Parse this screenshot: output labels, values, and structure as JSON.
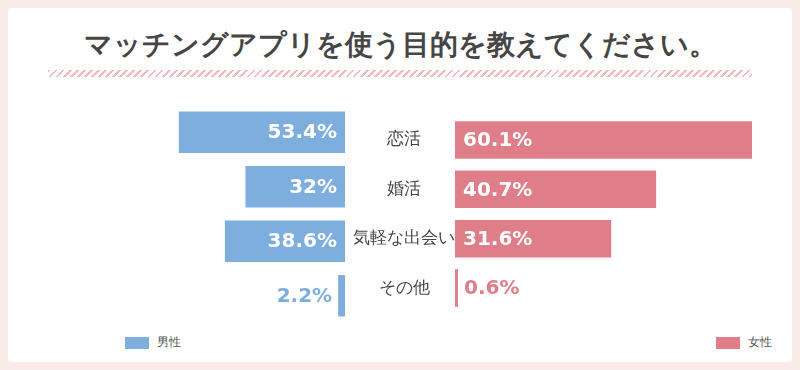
{
  "chart_data": {
    "type": "bar",
    "orientation": "horizontal",
    "title": "マッチングアプリを使う目的を教えてください。",
    "categories": [
      "恋活",
      "婚活",
      "気軽な出会い",
      "その他"
    ],
    "series": [
      {
        "name": "男性",
        "color": "#7eaedd",
        "values": [
          53.4,
          32,
          38.6,
          2.2
        ],
        "value_labels": [
          "53.4%",
          "32%",
          "38.6%",
          "2.2%"
        ]
      },
      {
        "name": "女性",
        "color": "#df7d88",
        "values": [
          60.1,
          40.7,
          31.6,
          0.6
        ],
        "value_labels": [
          "60.1%",
          "40.7%",
          "31.6%",
          "0.6%"
        ]
      }
    ],
    "data_labels": true,
    "tick_labels": "y",
    "grid": false,
    "legend": "bottom"
  }
}
